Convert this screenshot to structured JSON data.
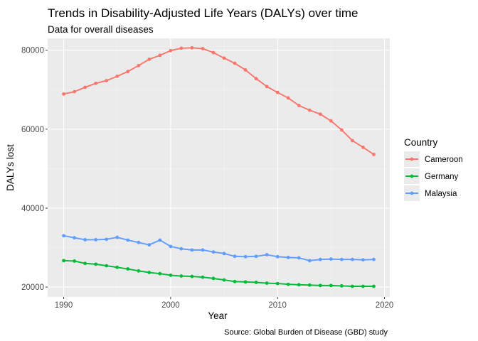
{
  "chart_data": {
    "type": "line",
    "title": "Trends in Disability-Adjusted Life Years (DALYs) over time",
    "subtitle": "Data for overall diseases",
    "xlabel": "Year",
    "ylabel": "DALYs lost",
    "caption": "Source: Global Burden of Disease (GBD) study",
    "legend_title": "Country",
    "legend_position": "right",
    "grid": true,
    "xlim": [
      1988.5,
      2020.5
    ],
    "ylim": [
      17500,
      83000
    ],
    "x_ticks": [
      1990,
      2000,
      2010,
      2020
    ],
    "y_ticks": [
      20000,
      40000,
      60000,
      80000
    ],
    "x": [
      1990,
      1991,
      1992,
      1993,
      1994,
      1995,
      1996,
      1997,
      1998,
      1999,
      2000,
      2001,
      2002,
      2003,
      2004,
      2005,
      2006,
      2007,
      2008,
      2009,
      2010,
      2011,
      2012,
      2013,
      2014,
      2015,
      2016,
      2017,
      2018,
      2019
    ],
    "series": [
      {
        "name": "Cameroon",
        "color": "#F8766D",
        "values": [
          68900,
          69500,
          70600,
          71600,
          72300,
          73400,
          74600,
          76100,
          77700,
          78700,
          79900,
          80500,
          80600,
          80400,
          79400,
          78000,
          76700,
          75000,
          72800,
          70800,
          69300,
          67900,
          66000,
          64800,
          63800,
          62100,
          59800,
          57100,
          55400,
          53600
        ]
      },
      {
        "name": "Germany",
        "color": "#00BA38",
        "values": [
          26700,
          26600,
          26000,
          25800,
          25400,
          25000,
          24600,
          24100,
          23700,
          23400,
          23000,
          22800,
          22700,
          22500,
          22200,
          21800,
          21400,
          21300,
          21200,
          21000,
          20900,
          20700,
          20600,
          20500,
          20400,
          20400,
          20300,
          20200,
          20200,
          20200
        ]
      },
      {
        "name": "Malaysia",
        "color": "#619CFF",
        "values": [
          33000,
          32500,
          32000,
          32000,
          32100,
          32600,
          31900,
          31300,
          30700,
          31900,
          30300,
          29700,
          29400,
          29400,
          28900,
          28500,
          27800,
          27700,
          27800,
          28200,
          27700,
          27500,
          27400,
          26700,
          27000,
          27100,
          27000,
          27000,
          26900,
          27000
        ]
      }
    ]
  }
}
